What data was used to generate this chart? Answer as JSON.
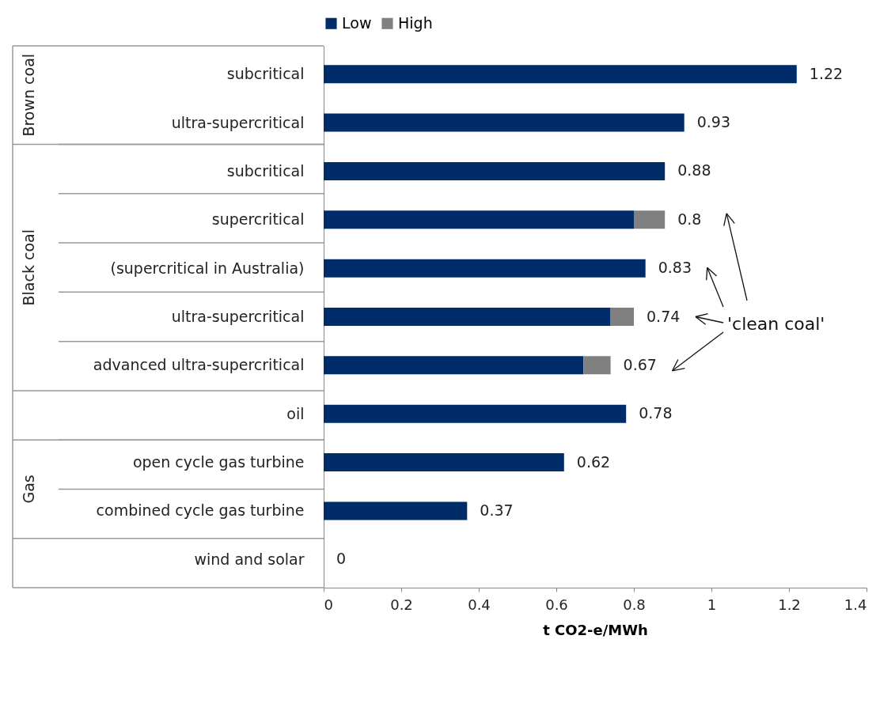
{
  "chart_data": {
    "type": "bar",
    "orientation": "horizontal",
    "stacked": true,
    "categories": [
      "subcritical",
      "ultra-supercritical",
      "subcritical",
      "supercritical",
      "(supercritical in Australia)",
      "ultra-supercritical",
      "advanced ultra-supercritical",
      "oil",
      "open cycle gas turbine",
      "combined cycle gas turbine",
      "wind and solar"
    ],
    "series": [
      {
        "name": "Low",
        "color": "#002d6a",
        "values": [
          1.22,
          0.93,
          0.88,
          0.8,
          0.83,
          0.74,
          0.67,
          0.78,
          0.62,
          0.37,
          0
        ],
        "value_labels": [
          "1.22",
          "0.93",
          "0.88",
          "0.8",
          "0.83",
          "0.74",
          "0.67",
          "0.78",
          "0.62",
          "0.37",
          "0"
        ]
      },
      {
        "name": "High",
        "color": "#808080",
        "values": [
          null,
          null,
          null,
          0.08,
          null,
          0.06,
          0.07,
          null,
          null,
          null,
          null
        ]
      }
    ],
    "xlabel": "t CO2-e/MWh",
    "xlim": [
      0,
      1.4
    ],
    "xticks": [
      0,
      0.2,
      0.4,
      0.6,
      0.8,
      1,
      1.2,
      1.4
    ],
    "legend": "top",
    "grid": false,
    "annotations": [
      "Brown coal",
      "Black coal",
      "Gas",
      "'clean coal'"
    ]
  }
}
